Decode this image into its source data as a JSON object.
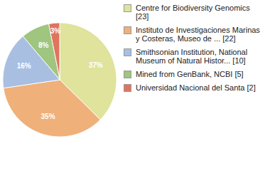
{
  "chart_data": {
    "type": "pie",
    "categories": [
      "Centre for Biodiversity Genomics [23]",
      "Instituto de Investigaciones Marinas y Costeras, Museo de ... [22]",
      "Smithsonian Institution, National Museum of Natural Histor... [10]",
      "Mined from GenBank, NCBI [5]",
      "Universidad Nacional del Santa [2]"
    ],
    "values": [
      37,
      35,
      16,
      8,
      3
    ],
    "value_labels": [
      "37%",
      "35%",
      "16%",
      "8%",
      "3%"
    ],
    "colors": [
      "#dfe39b",
      "#f0b07a",
      "#a8bfe2",
      "#9fc57f",
      "#e0745f"
    ],
    "data_labels": true,
    "legend": "right"
  }
}
